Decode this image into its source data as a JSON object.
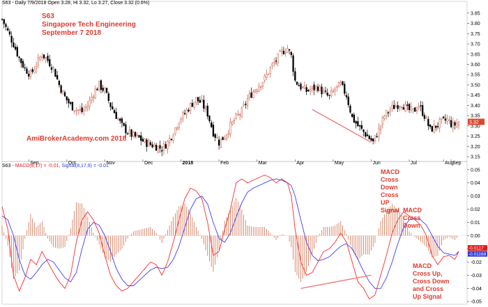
{
  "header": {
    "price_info": "S63 - Daily 7/9/2018 Open 3.28, Hi 3.32, Lo 3.27, Close 3.32 (0.6%)",
    "macd_prefix": "S63 - ",
    "macd_label": "MACD(8,17) = -0.01,",
    "signal_label": "Signal(8,17,9) = -0.01"
  },
  "titles": {
    "ticker": "S63",
    "company": "Singapore Tech Engineering",
    "date": "September 7 2018",
    "watermark": "AmiBrokerAcademy.com  2018"
  },
  "annotations": {
    "cross_down_cross_up": "MACD\nCross\nDown\nCross\nUP\nSignal",
    "cross_down": "MACD\nCross\nDown",
    "cross_up_down_up": "MACD\nCross Up,\nCross Down\nand Cross\nUp Signal"
  },
  "colors": {
    "up_candle": "#c8553d",
    "down_candle": "#000000",
    "macd": "#ff2a2a",
    "signal": "#3b3bff",
    "histogram": "#d0704d",
    "trendline": "#f07a7a",
    "text_red": "#e03a2f",
    "price_badge": "#d94a2f",
    "macd_badge": "#e11a1a",
    "signal_badge": "#2f3bd4"
  },
  "chart_data": [
    {
      "type": "candlestick",
      "x_ticks": [
        "Sep",
        "Oct",
        "Nov",
        "Dec",
        "2018",
        "Feb",
        "Mar",
        "Apr",
        "May",
        "Jun",
        "Jul",
        "Aug",
        "Sep"
      ],
      "y_ticks": [
        "3.15",
        "3.20",
        "3.25",
        "3.30",
        "3.35",
        "3.40",
        "3.45",
        "3.50",
        "3.55",
        "3.60",
        "3.65",
        "3.70",
        "3.75",
        "3.80",
        "3.85"
      ],
      "ylim": [
        3.14,
        3.88
      ],
      "last_price_badge": "3.32",
      "close_path": [
        [
          0,
          3.82
        ],
        [
          3,
          3.76
        ],
        [
          6,
          3.7
        ],
        [
          9,
          3.63
        ],
        [
          12,
          3.58
        ],
        [
          15,
          3.55
        ],
        [
          18,
          3.6
        ],
        [
          21,
          3.65
        ],
        [
          24,
          3.62
        ],
        [
          27,
          3.58
        ],
        [
          30,
          3.5
        ],
        [
          33,
          3.44
        ],
        [
          36,
          3.4
        ],
        [
          39,
          3.38
        ],
        [
          42,
          3.37
        ],
        [
          45,
          3.4
        ],
        [
          48,
          3.46
        ],
        [
          51,
          3.5
        ],
        [
          54,
          3.47
        ],
        [
          57,
          3.4
        ],
        [
          60,
          3.35
        ],
        [
          63,
          3.3
        ],
        [
          66,
          3.27
        ],
        [
          69,
          3.25
        ],
        [
          72,
          3.24
        ],
        [
          75,
          3.22
        ],
        [
          78,
          3.21
        ],
        [
          81,
          3.2
        ],
        [
          84,
          3.19
        ],
        [
          87,
          3.22
        ],
        [
          90,
          3.27
        ],
        [
          93,
          3.33
        ],
        [
          96,
          3.36
        ],
        [
          99,
          3.4
        ],
        [
          102,
          3.43
        ],
        [
          105,
          3.41
        ],
        [
          108,
          3.36
        ],
        [
          111,
          3.27
        ],
        [
          114,
          3.22
        ],
        [
          117,
          3.25
        ],
        [
          120,
          3.3
        ],
        [
          123,
          3.34
        ],
        [
          126,
          3.37
        ],
        [
          129,
          3.43
        ],
        [
          132,
          3.47
        ],
        [
          135,
          3.5
        ],
        [
          138,
          3.53
        ],
        [
          141,
          3.58
        ],
        [
          144,
          3.62
        ],
        [
          147,
          3.66
        ],
        [
          150,
          3.68
        ],
        [
          152,
          3.64
        ],
        [
          154,
          3.52
        ],
        [
          157,
          3.49
        ],
        [
          160,
          3.47
        ],
        [
          163,
          3.48
        ],
        [
          166,
          3.49
        ],
        [
          169,
          3.46
        ],
        [
          172,
          3.44
        ],
        [
          175,
          3.48
        ],
        [
          178,
          3.5
        ],
        [
          181,
          3.45
        ],
        [
          184,
          3.34
        ],
        [
          187,
          3.3
        ],
        [
          190,
          3.27
        ],
        [
          193,
          3.24
        ],
        [
          195,
          3.22
        ],
        [
          198,
          3.28
        ],
        [
          201,
          3.35
        ],
        [
          204,
          3.38
        ],
        [
          207,
          3.4
        ],
        [
          210,
          3.41
        ],
        [
          213,
          3.38
        ],
        [
          216,
          3.37
        ],
        [
          219,
          3.4
        ],
        [
          222,
          3.35
        ],
        [
          225,
          3.28
        ],
        [
          228,
          3.3
        ],
        [
          231,
          3.32
        ],
        [
          234,
          3.33
        ],
        [
          237,
          3.3
        ],
        [
          240,
          3.32
        ]
      ],
      "trendline": [
        [
          163,
          3.38
        ],
        [
          194,
          3.22
        ]
      ]
    },
    {
      "type": "line",
      "series_labels": [
        "MACD(8,17)",
        "Signal(8,17,9)"
      ],
      "y_ticks": [
        "0.05",
        "0.04",
        "0.03",
        "0.02",
        "0.01",
        "0.00",
        "-0.01",
        "-0.02",
        "-0.03",
        "-0.04",
        "-0.05"
      ],
      "ylim": [
        -0.052,
        0.052
      ],
      "macd_badge": "-0.0117",
      "signal_badge": "-0.01168",
      "macd": [
        [
          0,
          0.022
        ],
        [
          3,
          0.005
        ],
        [
          6,
          -0.03
        ],
        [
          9,
          -0.042
        ],
        [
          12,
          -0.032
        ],
        [
          15,
          -0.018
        ],
        [
          18,
          -0.022
        ],
        [
          21,
          -0.012
        ],
        [
          24,
          -0.02
        ],
        [
          27,
          -0.028
        ],
        [
          30,
          -0.035
        ],
        [
          33,
          -0.04
        ],
        [
          36,
          -0.03
        ],
        [
          39,
          -0.005
        ],
        [
          42,
          0.012
        ],
        [
          45,
          0.018
        ],
        [
          48,
          0.012
        ],
        [
          51,
          0.002
        ],
        [
          54,
          -0.015
        ],
        [
          57,
          -0.03
        ],
        [
          60,
          -0.038
        ],
        [
          63,
          -0.042
        ],
        [
          66,
          -0.04
        ],
        [
          69,
          -0.035
        ],
        [
          72,
          -0.03
        ],
        [
          75,
          -0.025
        ],
        [
          78,
          -0.02
        ],
        [
          81,
          -0.022
        ],
        [
          84,
          -0.03
        ],
        [
          87,
          -0.02
        ],
        [
          90,
          -0.005
        ],
        [
          93,
          0.012
        ],
        [
          96,
          0.028
        ],
        [
          99,
          0.036
        ],
        [
          102,
          0.034
        ],
        [
          105,
          0.028
        ],
        [
          108,
          0.01
        ],
        [
          111,
          -0.015
        ],
        [
          114,
          -0.012
        ],
        [
          117,
          0.005
        ],
        [
          120,
          0.02
        ],
        [
          123,
          0.04
        ],
        [
          126,
          0.043
        ],
        [
          129,
          0.04
        ],
        [
          132,
          0.042
        ],
        [
          135,
          0.044
        ],
        [
          138,
          0.046
        ],
        [
          141,
          0.044
        ],
        [
          144,
          0.04
        ],
        [
          147,
          0.043
        ],
        [
          150,
          0.04
        ],
        [
          152,
          0.03
        ],
        [
          154,
          0.005
        ],
        [
          157,
          -0.02
        ],
        [
          160,
          -0.03
        ],
        [
          163,
          -0.028
        ],
        [
          166,
          -0.02
        ],
        [
          169,
          -0.012
        ],
        [
          172,
          -0.01
        ],
        [
          175,
          -0.005
        ],
        [
          178,
          0.002
        ],
        [
          181,
          -0.005
        ],
        [
          184,
          -0.02
        ],
        [
          187,
          -0.035
        ],
        [
          190,
          -0.04
        ],
        [
          193,
          -0.048
        ],
        [
          196,
          -0.045
        ],
        [
          199,
          -0.03
        ],
        [
          202,
          -0.015
        ],
        [
          205,
          0.002
        ],
        [
          208,
          0.012
        ],
        [
          211,
          0.018
        ],
        [
          214,
          0.015
        ],
        [
          217,
          0.012
        ],
        [
          220,
          0.008
        ],
        [
          223,
          0.0
        ],
        [
          226,
          -0.015
        ],
        [
          229,
          -0.022
        ],
        [
          232,
          -0.016
        ],
        [
          235,
          -0.015
        ],
        [
          238,
          -0.018
        ],
        [
          240,
          -0.012
        ]
      ],
      "signal": [
        [
          0,
          0.015
        ],
        [
          3,
          0.012
        ],
        [
          6,
          0.0
        ],
        [
          9,
          -0.018
        ],
        [
          12,
          -0.03
        ],
        [
          15,
          -0.033
        ],
        [
          18,
          -0.028
        ],
        [
          21,
          -0.022
        ],
        [
          24,
          -0.018
        ],
        [
          27,
          -0.02
        ],
        [
          30,
          -0.026
        ],
        [
          33,
          -0.032
        ],
        [
          36,
          -0.035
        ],
        [
          39,
          -0.028
        ],
        [
          42,
          -0.01
        ],
        [
          45,
          0.005
        ],
        [
          48,
          0.01
        ],
        [
          51,
          0.008
        ],
        [
          54,
          0.0
        ],
        [
          57,
          -0.012
        ],
        [
          60,
          -0.025
        ],
        [
          63,
          -0.033
        ],
        [
          66,
          -0.038
        ],
        [
          69,
          -0.038
        ],
        [
          72,
          -0.034
        ],
        [
          75,
          -0.03
        ],
        [
          78,
          -0.026
        ],
        [
          81,
          -0.024
        ],
        [
          84,
          -0.025
        ],
        [
          87,
          -0.024
        ],
        [
          90,
          -0.018
        ],
        [
          93,
          -0.008
        ],
        [
          96,
          0.006
        ],
        [
          99,
          0.02
        ],
        [
          102,
          0.028
        ],
        [
          105,
          0.03
        ],
        [
          108,
          0.024
        ],
        [
          111,
          0.01
        ],
        [
          114,
          -0.002
        ],
        [
          117,
          -0.005
        ],
        [
          120,
          0.002
        ],
        [
          123,
          0.014
        ],
        [
          126,
          0.025
        ],
        [
          129,
          0.033
        ],
        [
          132,
          0.036
        ],
        [
          135,
          0.038
        ],
        [
          138,
          0.04
        ],
        [
          141,
          0.042
        ],
        [
          144,
          0.043
        ],
        [
          147,
          0.042
        ],
        [
          150,
          0.04
        ],
        [
          152,
          0.038
        ],
        [
          154,
          0.03
        ],
        [
          157,
          0.012
        ],
        [
          160,
          -0.005
        ],
        [
          163,
          -0.015
        ],
        [
          166,
          -0.019
        ],
        [
          169,
          -0.018
        ],
        [
          172,
          -0.016
        ],
        [
          175,
          -0.012
        ],
        [
          178,
          -0.008
        ],
        [
          181,
          -0.006
        ],
        [
          184,
          -0.01
        ],
        [
          187,
          -0.018
        ],
        [
          190,
          -0.027
        ],
        [
          193,
          -0.035
        ],
        [
          196,
          -0.04
        ],
        [
          199,
          -0.04
        ],
        [
          202,
          -0.032
        ],
        [
          205,
          -0.02
        ],
        [
          208,
          -0.006
        ],
        [
          211,
          0.006
        ],
        [
          214,
          0.012
        ],
        [
          217,
          0.013
        ],
        [
          220,
          0.012
        ],
        [
          223,
          0.008
        ],
        [
          226,
          0.0
        ],
        [
          229,
          -0.008
        ],
        [
          232,
          -0.013
        ],
        [
          235,
          -0.014
        ],
        [
          238,
          -0.015
        ],
        [
          240,
          -0.012
        ]
      ],
      "trendline": [
        [
          157,
          -0.04
        ],
        [
          194,
          -0.03
        ]
      ]
    }
  ]
}
